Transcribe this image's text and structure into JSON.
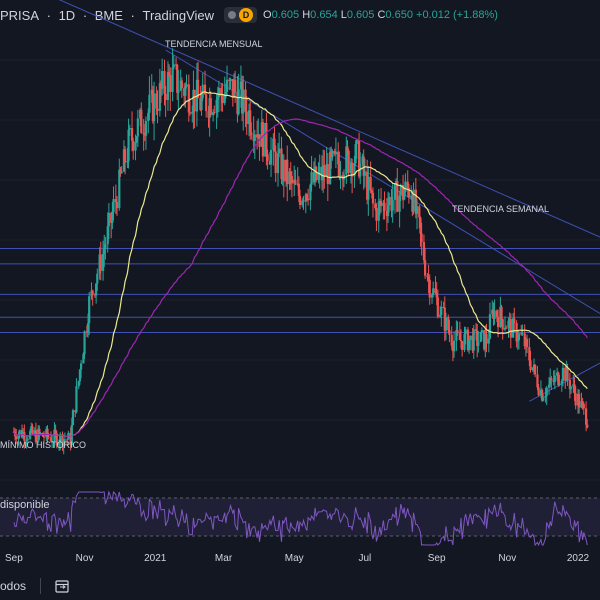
{
  "header": {
    "symbol": "PRISA",
    "interval": "1D",
    "exchange": "BME",
    "source": "TradingView",
    "badge": "D",
    "ohlc": {
      "o_label": "O",
      "o": "0.605",
      "h_label": "H",
      "h": "0.654",
      "l_label": "L",
      "l": "0.605",
      "c_label": "C",
      "c": "0.650",
      "change": "+0.012 (+1.88%)"
    }
  },
  "annotations": {
    "monthly_trend": "TENDENCIA MENSUAL",
    "weekly_trend": "TENDENCIA SEMANAL",
    "all_time_low": "MÍNIMO HISTÓRICO"
  },
  "rsi_panel": {
    "label": "disponible"
  },
  "footer": {
    "range_label": "odos"
  },
  "colors": {
    "background": "#131722",
    "up": "#26a69a",
    "down": "#ef5350",
    "trendline": "#3f51b5",
    "ma_short": "#ecea8e",
    "ma_long": "#9c27b0",
    "rsi": "#7e57c2",
    "text": "#d1d4dc"
  },
  "chart_data": {
    "type": "candlestick",
    "x_ticks": [
      "Sep",
      "Nov",
      "2021",
      "Mar",
      "May",
      "Jul",
      "Sep",
      "Nov",
      "2022"
    ],
    "prices_approx": [
      {
        "date": "2020-09",
        "close": 0.62
      },
      {
        "date": "2020-10-20",
        "close": 0.6
      },
      {
        "date": "2020-11-05",
        "close": 0.95
      },
      {
        "date": "2020-11-20",
        "close": 1.12
      },
      {
        "date": "2020-12-10",
        "close": 1.38
      },
      {
        "date": "2021-01-15",
        "close": 1.55
      },
      {
        "date": "2021-02-10",
        "close": 1.48
      },
      {
        "date": "2021-03-10",
        "close": 1.52
      },
      {
        "date": "2021-04-10",
        "close": 1.36
      },
      {
        "date": "2021-05-05",
        "close": 1.24
      },
      {
        "date": "2021-06-05",
        "close": 1.32
      },
      {
        "date": "2021-06-25",
        "close": 1.34
      },
      {
        "date": "2021-07-10",
        "close": 1.2
      },
      {
        "date": "2021-08-10",
        "close": 1.26
      },
      {
        "date": "2021-08-25",
        "close": 1.02
      },
      {
        "date": "2021-09-15",
        "close": 0.86
      },
      {
        "date": "2021-10-15",
        "close": 0.86
      },
      {
        "date": "2021-10-20",
        "close": 0.94
      },
      {
        "date": "2021-11-15",
        "close": 0.86
      },
      {
        "date": "2021-12-01",
        "close": 0.72
      },
      {
        "date": "2021-12-20",
        "close": 0.78
      },
      {
        "date": "2022-01-10",
        "close": 0.65
      }
    ],
    "horizontal_levels": [
      1.1,
      0.98,
      0.88
    ],
    "trendlines": [
      "monthly",
      "weekly"
    ],
    "moving_averages": [
      "short",
      "long"
    ],
    "indicator": "RSI"
  }
}
